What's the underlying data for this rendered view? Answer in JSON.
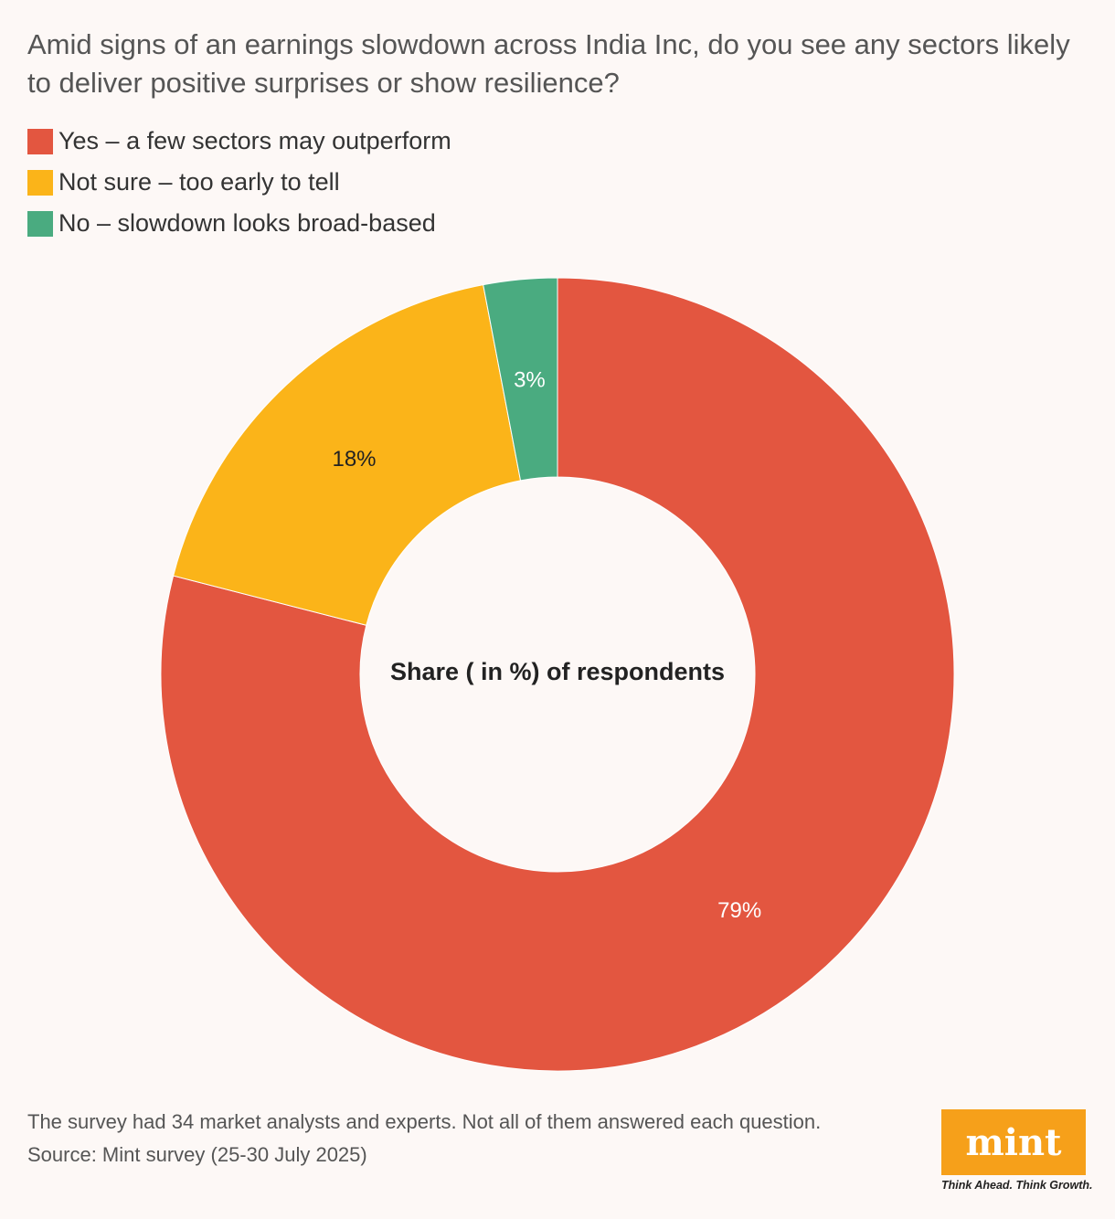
{
  "title": "Amid signs of an earnings slowdown across India Inc, do you see any sectors likely to deliver positive surprises or show resilience?",
  "chart_data": {
    "type": "pie",
    "variant": "donut",
    "center_label": "Share ( in %) of respondents",
    "series": [
      {
        "name": "Yes – a few sectors may outperform",
        "value": 79,
        "label": "79%",
        "color": "#e35640",
        "label_color": "#ffffff"
      },
      {
        "name": "Not sure – too early to tell",
        "value": 18,
        "label": "18%",
        "color": "#fbb419",
        "label_color": "#222222"
      },
      {
        "name": "No – slowdown looks broad-based",
        "value": 3,
        "label": "3%",
        "color": "#4aab80",
        "label_color": "#ffffff"
      }
    ],
    "legend_position": "top-left"
  },
  "footer": {
    "note": "The survey had 34 market analysts and experts. Not all of them answered each question.",
    "source": "Source: Mint survey (25-30 July 2025)"
  },
  "logo": {
    "text": "mint",
    "tagline": "Think Ahead. Think Growth."
  }
}
